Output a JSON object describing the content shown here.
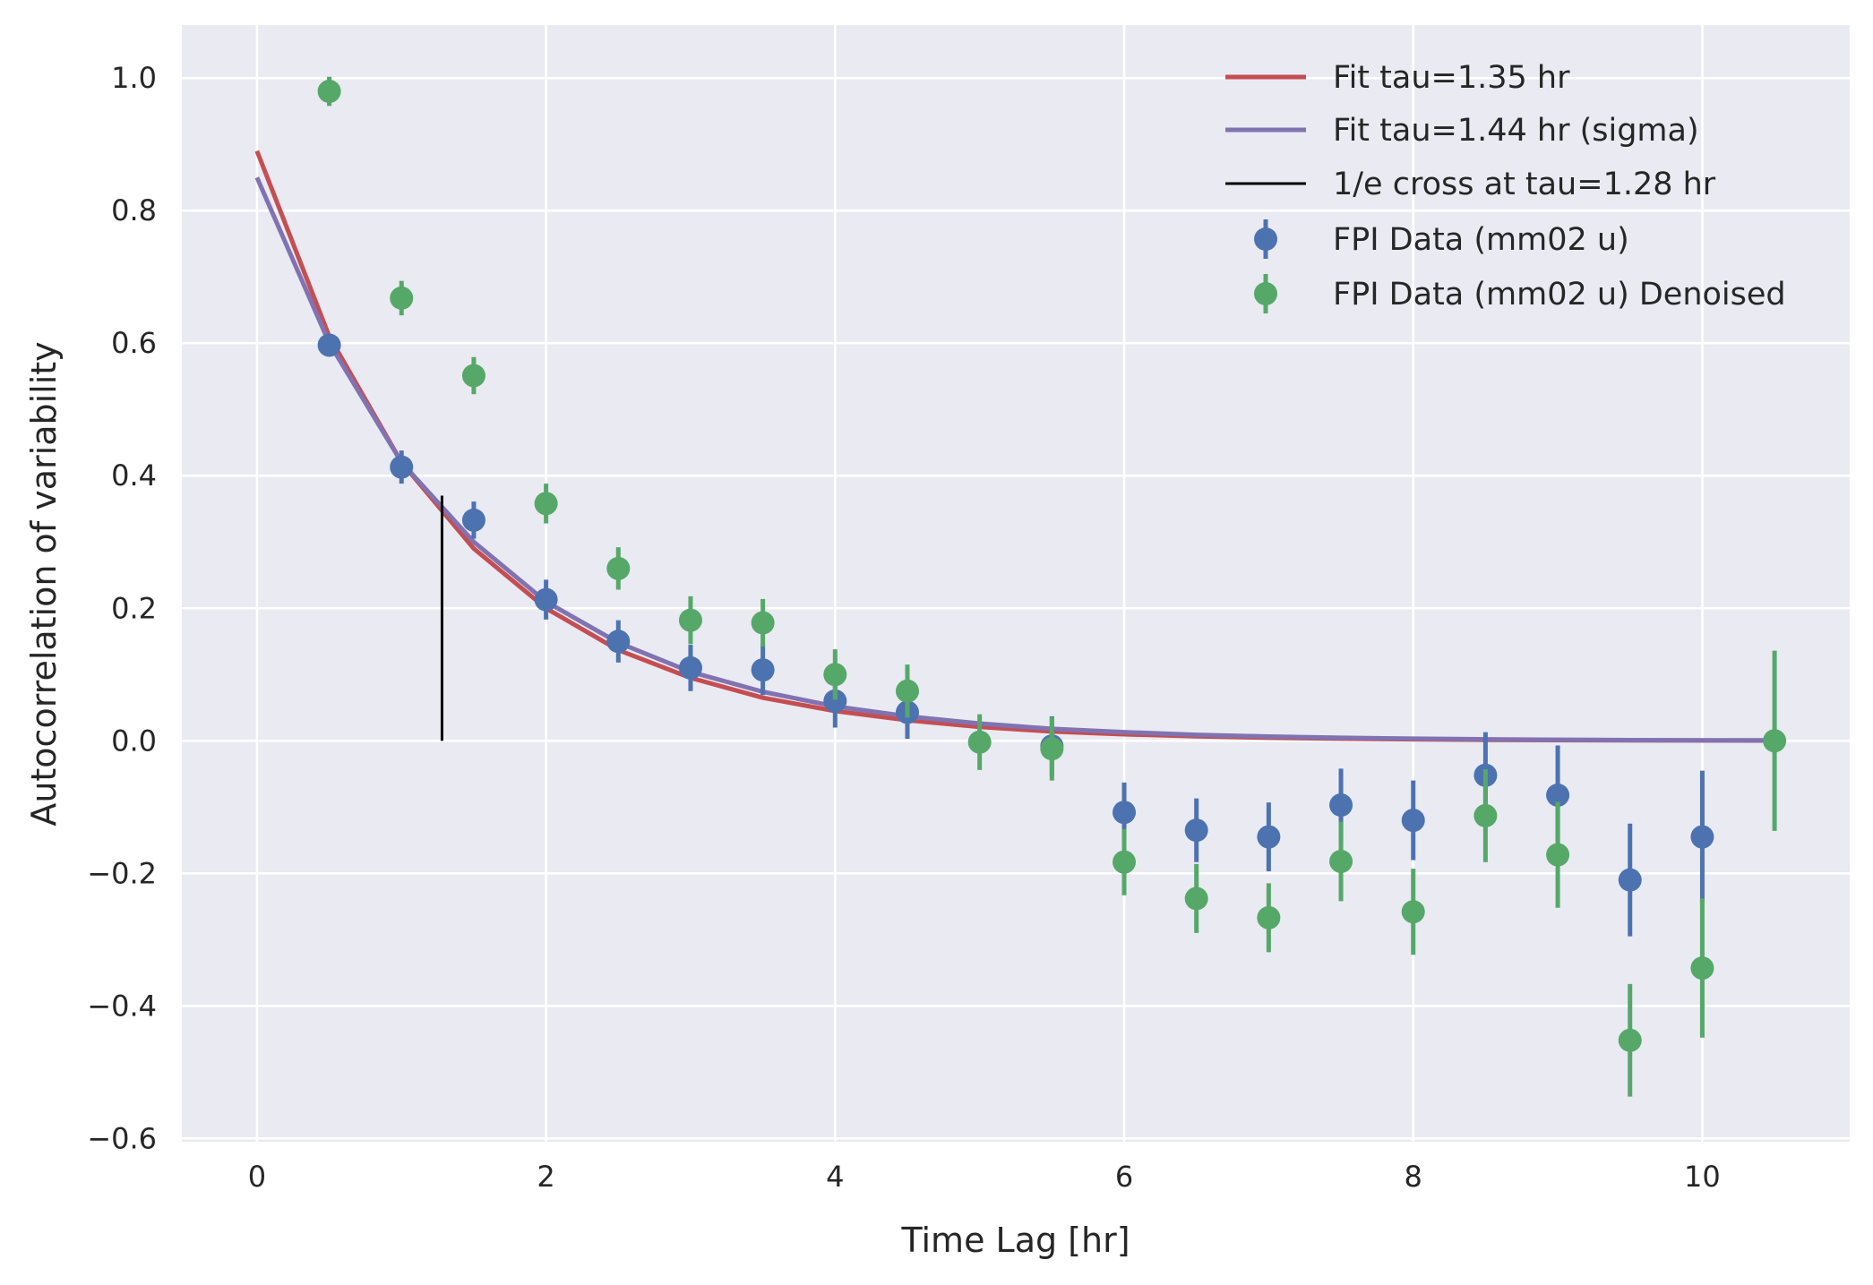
{
  "chart_data": {
    "type": "scatter",
    "xlabel": "Time Lag [hr]",
    "ylabel": "Autocorrelation of variability",
    "xlim": [
      -0.52,
      11.02
    ],
    "ylim": [
      -0.605,
      1.08
    ],
    "xticks": [
      0,
      2,
      4,
      6,
      8,
      10
    ],
    "xtick_labels": [
      "0",
      "2",
      "4",
      "6",
      "8",
      "10"
    ],
    "yticks": [
      -0.6,
      -0.4,
      -0.2,
      0.0,
      0.2,
      0.4,
      0.6,
      0.8,
      1.0
    ],
    "ytick_labels": [
      "−0.6",
      "−0.4",
      "−0.2",
      "0.0",
      "0.2",
      "0.4",
      "0.6",
      "0.8",
      "1.0"
    ],
    "grid": true,
    "legend_position": "top-right",
    "series": [
      {
        "name": "Fit tau=1.35 hr",
        "kind": "line",
        "color": "#c44e52",
        "x": [
          0,
          0.5,
          1.0,
          1.5,
          2.0,
          2.5,
          3.0,
          3.5,
          4.0,
          4.5,
          5.0,
          5.5,
          6.0,
          6.5,
          7.0,
          7.5,
          8.0,
          8.5,
          9.0,
          9.5,
          10.0,
          10.5
        ],
        "y": [
          0.89,
          0.61,
          0.42,
          0.29,
          0.2,
          0.137,
          0.095,
          0.065,
          0.045,
          0.031,
          0.021,
          0.014,
          0.0098,
          0.0067,
          0.0046,
          0.0032,
          0.0022,
          0.0015,
          0.001,
          0.0007,
          0.0005,
          0.0003
        ]
      },
      {
        "name": "Fit tau=1.44 hr (sigma)",
        "kind": "line",
        "color": "#8172b2",
        "x": [
          0,
          0.5,
          1.0,
          1.5,
          2.0,
          2.5,
          3.0,
          3.5,
          4.0,
          4.5,
          5.0,
          5.5,
          6.0,
          6.5,
          7.0,
          7.5,
          8.0,
          8.5,
          9.0,
          9.5,
          10.0,
          10.5
        ],
        "y": [
          0.85,
          0.6,
          0.42,
          0.3,
          0.21,
          0.148,
          0.104,
          0.074,
          0.052,
          0.037,
          0.026,
          0.018,
          0.013,
          0.009,
          0.0064,
          0.0045,
          0.0032,
          0.0022,
          0.0016,
          0.0011,
          0.0008,
          0.0006
        ]
      },
      {
        "name": "1/e cross at tau=1.28 hr",
        "kind": "vline",
        "color": "#000000",
        "x": [
          1.28,
          1.28
        ],
        "y": [
          0.0,
          0.37
        ]
      },
      {
        "name": "FPI Data (mm02 u)",
        "kind": "errorbar",
        "color": "#4c72b0",
        "x": [
          0.5,
          1.0,
          1.5,
          2.0,
          2.5,
          3.0,
          3.5,
          4.0,
          4.5,
          5.5,
          6.0,
          6.5,
          7.0,
          7.5,
          8.0,
          8.5,
          9.0,
          9.5,
          10.0
        ],
        "y": [
          0.597,
          0.413,
          0.333,
          0.213,
          0.15,
          0.11,
          0.107,
          0.06,
          0.043,
          -0.008,
          -0.108,
          -0.135,
          -0.145,
          -0.097,
          -0.12,
          -0.052,
          -0.082,
          -0.21,
          -0.145
        ],
        "yerr": [
          0.016,
          0.025,
          0.028,
          0.03,
          0.032,
          0.035,
          0.038,
          0.04,
          0.04,
          0.045,
          0.045,
          0.048,
          0.052,
          0.055,
          0.06,
          0.065,
          0.075,
          0.085,
          0.1
        ]
      },
      {
        "name": "FPI Data (mm02 u) Denoised",
        "kind": "errorbar",
        "color": "#55a868",
        "x": [
          0.5,
          1.0,
          1.5,
          2.0,
          2.5,
          3.0,
          3.5,
          4.0,
          4.5,
          5.0,
          5.5,
          6.0,
          6.5,
          7.0,
          7.5,
          8.0,
          8.5,
          9.0,
          9.5,
          10.0,
          10.5
        ],
        "y": [
          0.98,
          0.668,
          0.551,
          0.358,
          0.26,
          0.182,
          0.178,
          0.1,
          0.075,
          -0.002,
          -0.012,
          -0.183,
          -0.238,
          -0.267,
          -0.182,
          -0.258,
          -0.113,
          -0.172,
          -0.452,
          -0.343,
          0.0
        ],
        "yerr": [
          0.022,
          0.026,
          0.028,
          0.03,
          0.032,
          0.036,
          0.036,
          0.038,
          0.04,
          0.042,
          0.048,
          0.05,
          0.052,
          0.052,
          0.06,
          0.065,
          0.07,
          0.08,
          0.085,
          0.105,
          0.136
        ]
      }
    ]
  }
}
